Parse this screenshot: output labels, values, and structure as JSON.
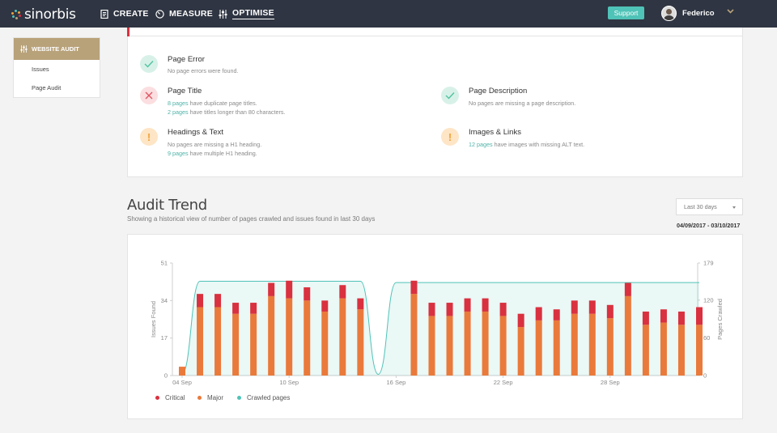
{
  "app": {
    "logo_text": "sinorbis",
    "nav": [
      {
        "label": "CREATE",
        "icon": "document-icon"
      },
      {
        "label": "MEASURE",
        "icon": "gauge-icon"
      },
      {
        "label": "OPTIMISE",
        "icon": "sliders-icon",
        "active": true
      }
    ],
    "support_label": "Support",
    "user_name": "Federico"
  },
  "sidebar": {
    "header": "WEBSITE AUDIT",
    "items": [
      "Issues",
      "Page Audit"
    ]
  },
  "checks": [
    {
      "status": "ok",
      "title": "Page Error",
      "lines": [
        {
          "link": "",
          "text": "No page errors were found."
        }
      ]
    },
    {
      "status": "error",
      "title": "Page Title",
      "lines": [
        {
          "link": "8 pages",
          "text": " have duplicate page titles."
        },
        {
          "link": "2 pages",
          "text": " have titles longer than 80 characters."
        }
      ]
    },
    {
      "status": "ok",
      "title": "Page Description",
      "lines": [
        {
          "link": "",
          "text": "No pages are missing a page description."
        }
      ]
    },
    {
      "status": "warning",
      "title": "Headings & Text",
      "lines": [
        {
          "link": "",
          "text": "No pages are missing a H1 heading."
        },
        {
          "link": "9 pages",
          "text": " have multiple H1 heading."
        }
      ]
    },
    {
      "status": "warning",
      "title": "Images & Links",
      "lines": [
        {
          "link": "12 pages",
          "text": " have images with missing ALT text."
        }
      ]
    }
  ],
  "trend": {
    "title": "Audit Trend",
    "subtitle": "Showing a historical view of number of pages crawled and issues found in last 30 days",
    "range_label": "Last 30 days",
    "date_range": "04/09/2017 - 03/10/2017"
  },
  "colors": {
    "critical": "#d9313f",
    "major": "#ea7a3b",
    "crawled": "#4fc3b7",
    "accent": "#b8a27a",
    "nav_bg": "#2f3542"
  },
  "chart_data": {
    "type": "bar",
    "x_ticks": [
      "04 Sep",
      "10 Sep",
      "16 Sep",
      "22 Sep",
      "28 Sep"
    ],
    "categories": [
      "04 Sep",
      "05 Sep",
      "06 Sep",
      "07 Sep",
      "08 Sep",
      "09 Sep",
      "10 Sep",
      "11 Sep",
      "12 Sep",
      "13 Sep",
      "14 Sep",
      "15 Sep",
      "16 Sep",
      "17 Sep",
      "18 Sep",
      "19 Sep",
      "20 Sep",
      "21 Sep",
      "22 Sep",
      "23 Sep",
      "24 Sep",
      "25 Sep",
      "26 Sep",
      "27 Sep",
      "28 Sep",
      "29 Sep",
      "30 Sep",
      "01 Oct",
      "02 Oct",
      "03 Oct"
    ],
    "series": [
      {
        "name": "Critical",
        "values": [
          0,
          6,
          6,
          5,
          5,
          6,
          8,
          6,
          5,
          6,
          5,
          0,
          0,
          6,
          6,
          6,
          6,
          6,
          6,
          6,
          6,
          5,
          6,
          6,
          6,
          6,
          6,
          6,
          6,
          8
        ]
      },
      {
        "name": "Major",
        "values": [
          4,
          31,
          31,
          28,
          28,
          36,
          35,
          34,
          29,
          35,
          30,
          0,
          0,
          37,
          27,
          27,
          29,
          29,
          27,
          22,
          25,
          25,
          28,
          28,
          26,
          36,
          23,
          24,
          23,
          23
        ]
      }
    ],
    "right_series": {
      "name": "Crawled pages",
      "values": [
        3,
        150,
        150,
        150,
        150,
        150,
        150,
        150,
        150,
        150,
        150,
        2,
        148,
        148,
        148,
        148,
        148,
        148,
        148,
        148,
        148,
        148,
        148,
        148,
        148,
        148,
        148,
        148,
        148,
        148
      ]
    },
    "ylabel": "Issues Found",
    "ylabel_right": "Pages Crawled",
    "y_ticks": [
      0,
      17,
      34,
      51
    ],
    "y_ticks_right": [
      0,
      60,
      120,
      179
    ],
    "ylim": [
      0,
      51
    ],
    "ylim_right": [
      0,
      179
    ],
    "legend_position": "bottom-left"
  }
}
